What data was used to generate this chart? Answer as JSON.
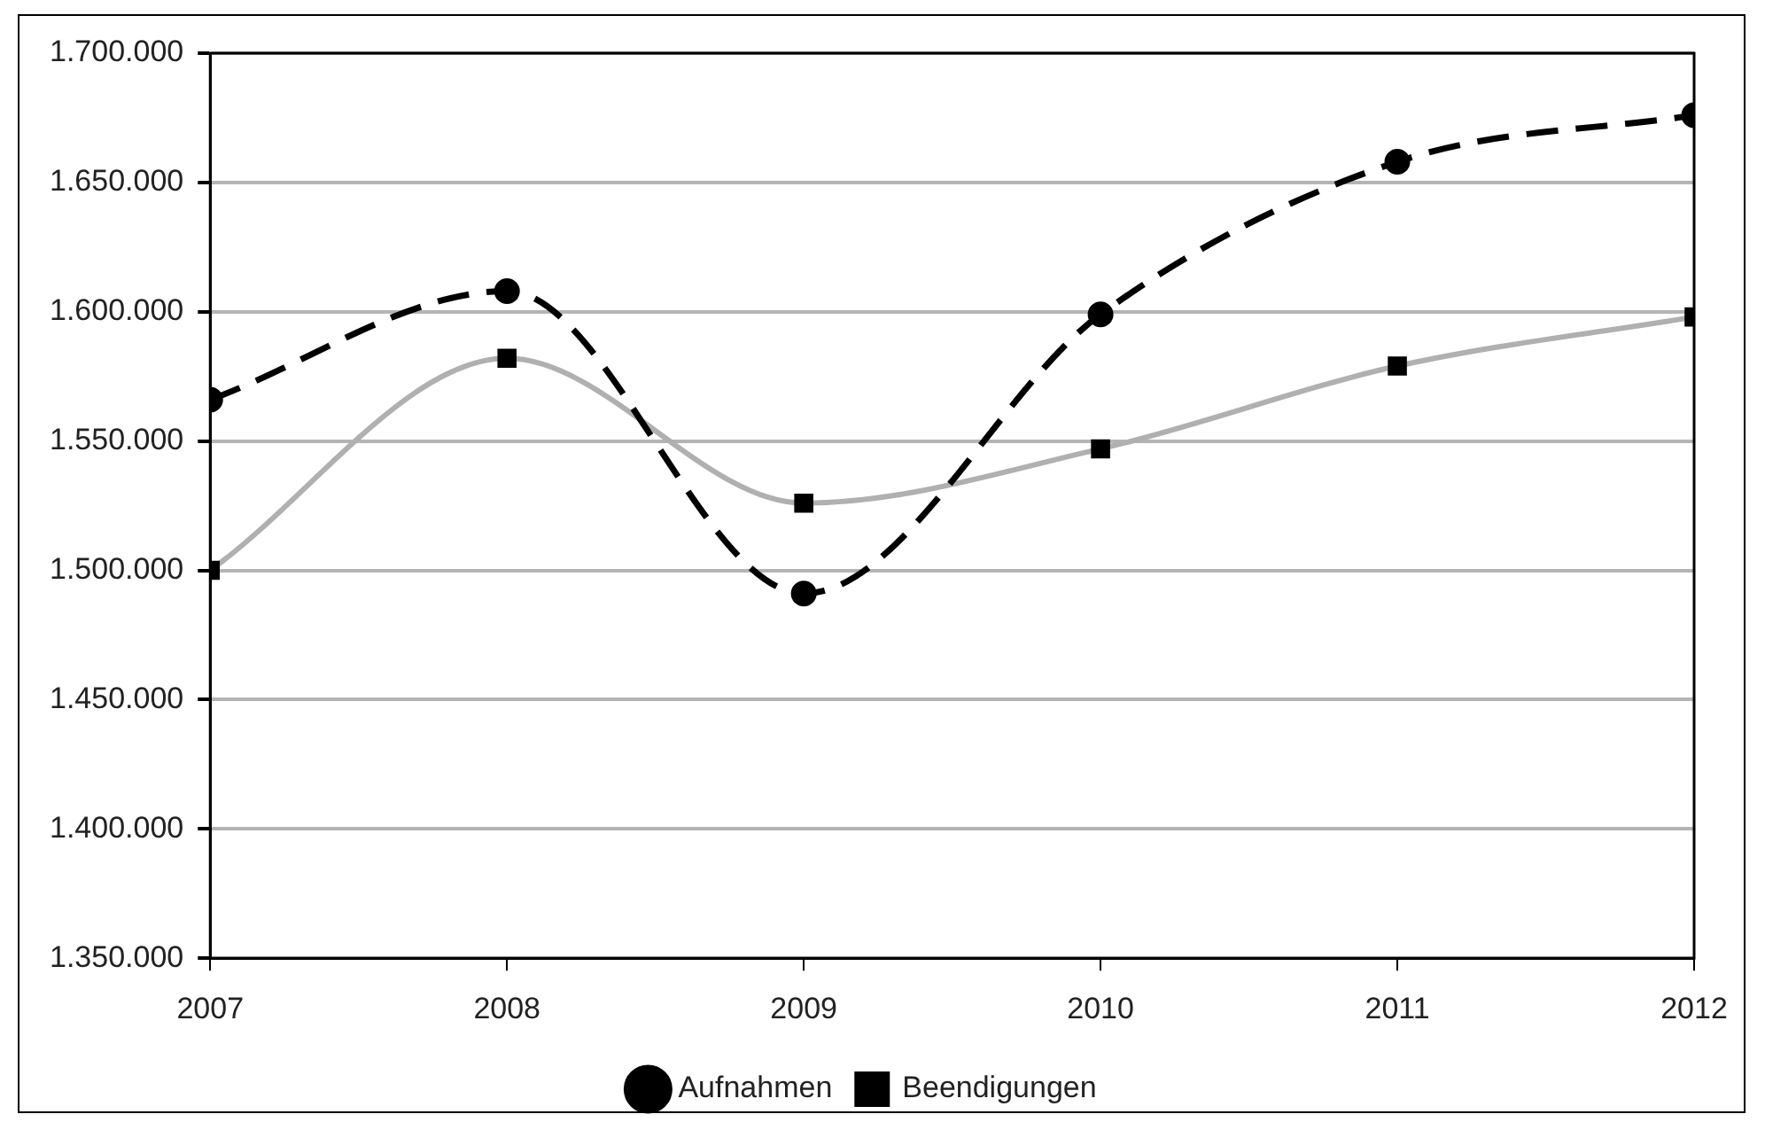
{
  "chart_data": {
    "type": "line",
    "x": [
      2007,
      2008,
      2009,
      2010,
      2011,
      2012
    ],
    "xlim": [
      2007,
      2012
    ],
    "xticks": [
      2007,
      2008,
      2009,
      2010,
      2011,
      2012
    ],
    "ylim": [
      1350000,
      1700000
    ],
    "yticks": [
      {
        "value": 1350000,
        "label": "1.350.000"
      },
      {
        "value": 1400000,
        "label": "1.400.000"
      },
      {
        "value": 1450000,
        "label": "1.450.000"
      },
      {
        "value": 1500000,
        "label": "1.500.000"
      },
      {
        "value": 1550000,
        "label": "1.550.000"
      },
      {
        "value": 1600000,
        "label": "1.600.000"
      },
      {
        "value": 1650000,
        "label": "1.650.000"
      },
      {
        "value": 1700000,
        "label": "1.700.000"
      }
    ],
    "grid": "y",
    "legend": "bottom",
    "series": [
      {
        "name": "Aufnahmen",
        "color": "#000000",
        "marker": "circle",
        "line_style": "dashed",
        "values": [
          1566000,
          1608000,
          1491000,
          1599000,
          1658000,
          1676000
        ]
      },
      {
        "name": "Beendigungen",
        "color": "#b0b0b0",
        "marker": "square",
        "line_style": "solid",
        "values": [
          1500000,
          1582000,
          1526000,
          1547000,
          1579000,
          1598000
        ]
      }
    ]
  }
}
